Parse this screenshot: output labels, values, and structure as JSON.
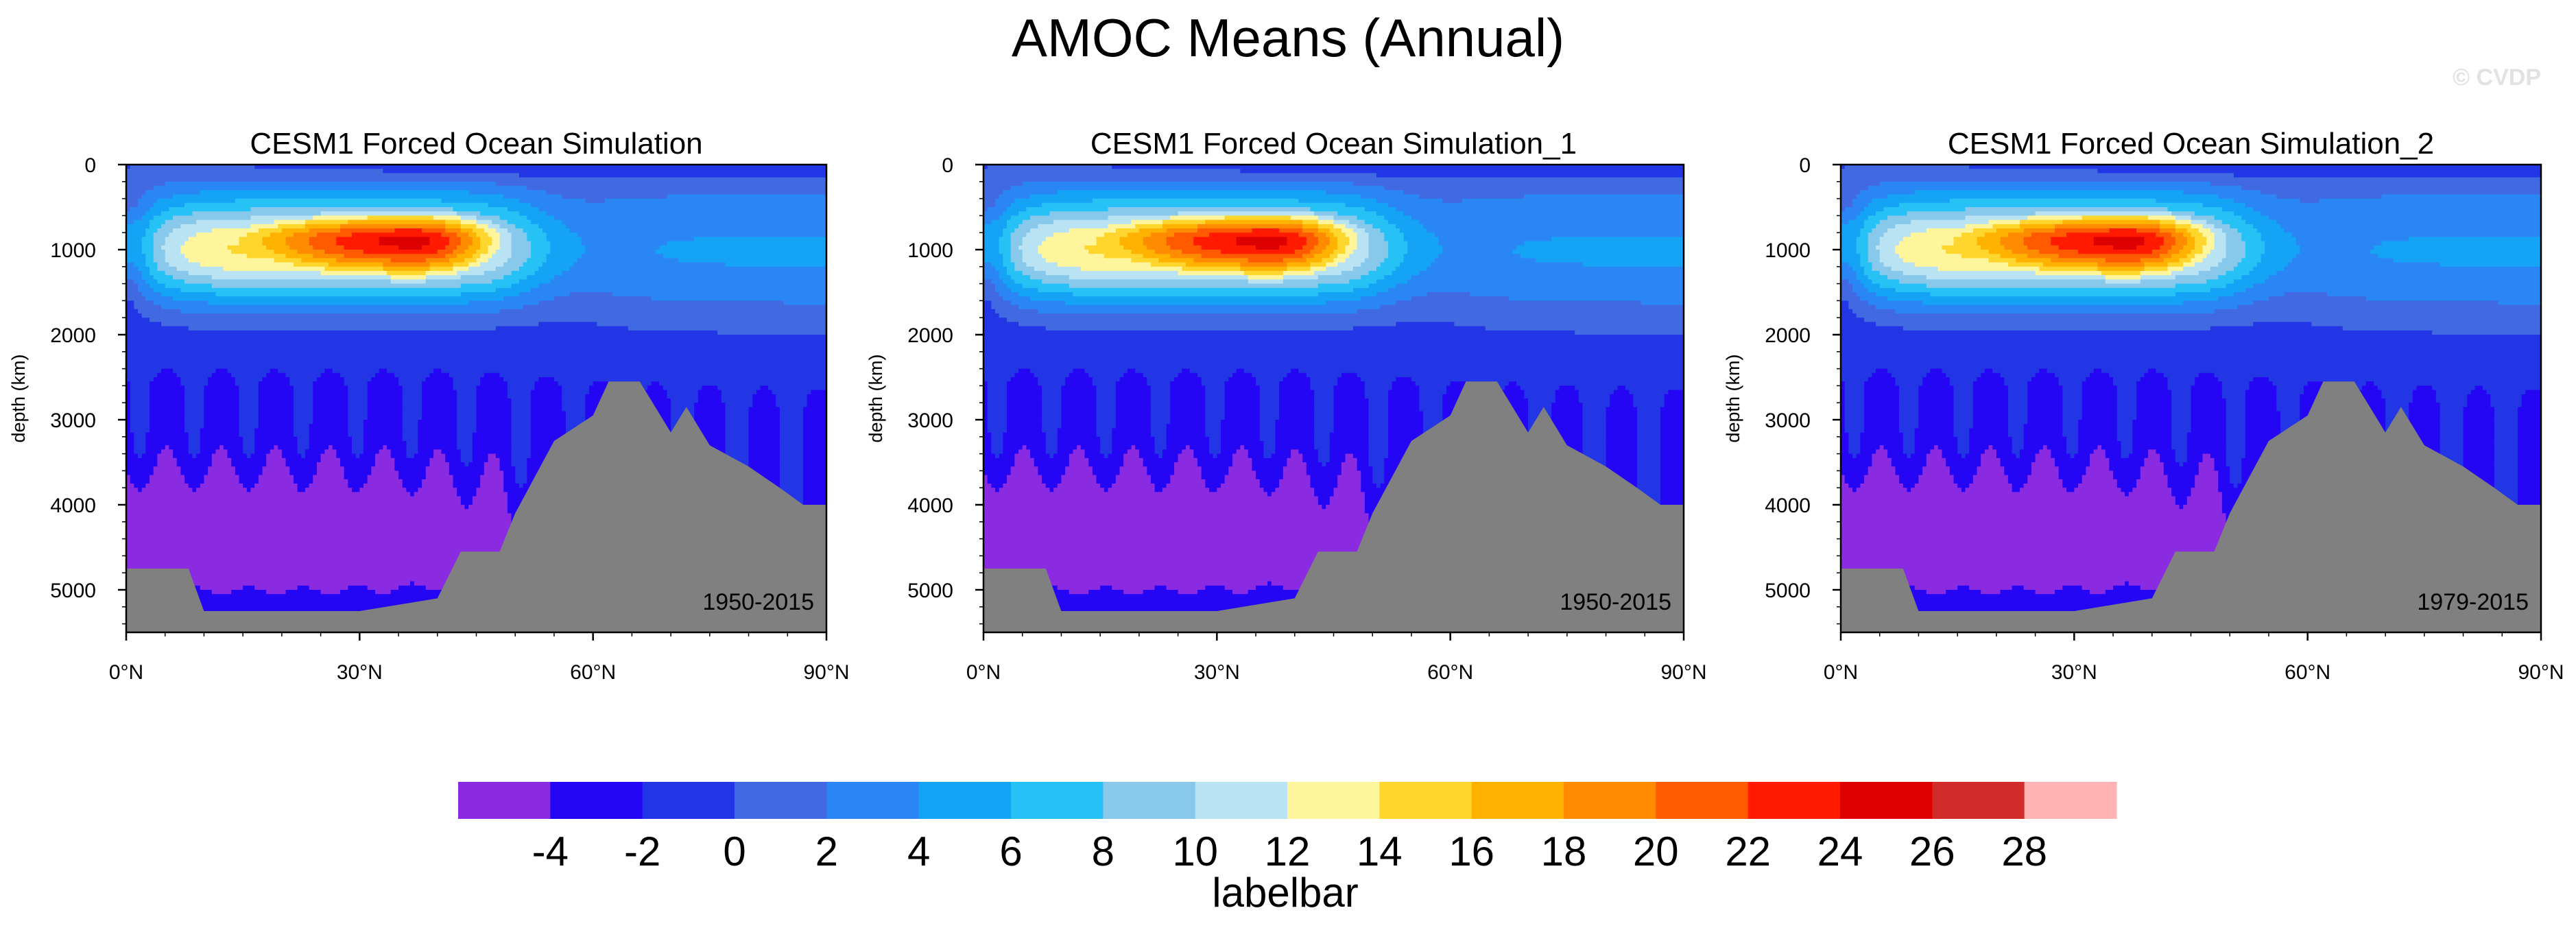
{
  "figure": {
    "title": "AMOC Means (Annual)",
    "copyright": "© CVDP"
  },
  "colors": {
    "land": "#808080",
    "levels": [
      "#8a2be2",
      "#2406f5",
      "#2236e6",
      "#4169e1",
      "#2b86f5",
      "#14a3f5",
      "#27c2f5",
      "#87c8eb",
      "#b9e2f2",
      "#fff59d",
      "#ffd62e",
      "#ffb300",
      "#ff8c00",
      "#ff5a00",
      "#ff1a00",
      "#dd0000",
      "#d22b2b",
      "#ffb3b3"
    ]
  },
  "chart_data": [
    {
      "type": "contour",
      "title": "CESM1 Forced Ocean Simulation",
      "period_label": "1950-2015",
      "ylabel": "depth (km)",
      "xlabel": "",
      "xlim": [
        0,
        90
      ],
      "ylim": [
        5500,
        0
      ],
      "xticks": [
        0,
        30,
        60,
        90
      ],
      "xtick_labels": [
        "0°N",
        "30°N",
        "60°N",
        "90°N"
      ],
      "yticks": [
        0,
        1000,
        2000,
        3000,
        4000,
        5000
      ],
      "ytick_labels": [
        "0",
        "1000",
        "2000",
        "3000",
        "4000",
        "5000"
      ],
      "core": {
        "lat": 37,
        "depth": 900,
        "max": 25
      },
      "bathymetry": [
        [
          0,
          4750
        ],
        [
          8,
          4750
        ],
        [
          9,
          5000
        ],
        [
          10,
          5250
        ],
        [
          30,
          5250
        ],
        [
          40,
          5100
        ],
        [
          43,
          4550
        ],
        [
          48,
          4550
        ],
        [
          50,
          4100
        ],
        [
          55,
          3250
        ],
        [
          60,
          2950
        ],
        [
          62,
          2550
        ],
        [
          66,
          2550
        ],
        [
          68,
          2850
        ],
        [
          70,
          3150
        ],
        [
          72,
          2850
        ],
        [
          75,
          3300
        ],
        [
          80,
          3550
        ],
        [
          84,
          3800
        ],
        [
          87,
          4000
        ],
        [
          90,
          4000
        ]
      ]
    },
    {
      "type": "contour",
      "title": "CESM1 Forced Ocean Simulation_1",
      "period_label": "1950-2015",
      "ylabel": "depth (km)",
      "xlabel": "",
      "xlim": [
        0,
        90
      ],
      "ylim": [
        5500,
        0
      ],
      "xticks": [
        0,
        30,
        60,
        90
      ],
      "xtick_labels": [
        "0°N",
        "30°N",
        "60°N",
        "90°N"
      ],
      "yticks": [
        0,
        1000,
        2000,
        3000,
        4000,
        5000
      ],
      "ytick_labels": [
        "0",
        "1000",
        "2000",
        "3000",
        "4000",
        "5000"
      ],
      "core": {
        "lat": 37,
        "depth": 900,
        "max": 25
      },
      "bathymetry": [
        [
          0,
          4750
        ],
        [
          8,
          4750
        ],
        [
          9,
          5000
        ],
        [
          10,
          5250
        ],
        [
          30,
          5250
        ],
        [
          40,
          5100
        ],
        [
          43,
          4550
        ],
        [
          48,
          4550
        ],
        [
          50,
          4100
        ],
        [
          55,
          3250
        ],
        [
          60,
          2950
        ],
        [
          62,
          2550
        ],
        [
          66,
          2550
        ],
        [
          68,
          2850
        ],
        [
          70,
          3150
        ],
        [
          72,
          2850
        ],
        [
          75,
          3300
        ],
        [
          80,
          3550
        ],
        [
          84,
          3800
        ],
        [
          87,
          4000
        ],
        [
          90,
          4000
        ]
      ]
    },
    {
      "type": "contour",
      "title": "CESM1 Forced Ocean Simulation_2",
      "period_label": "1979-2015",
      "ylabel": "depth (km)",
      "xlabel": "",
      "xlim": [
        0,
        90
      ],
      "ylim": [
        5500,
        0
      ],
      "xticks": [
        0,
        30,
        60,
        90
      ],
      "xtick_labels": [
        "0°N",
        "30°N",
        "60°N",
        "90°N"
      ],
      "yticks": [
        0,
        1000,
        2000,
        3000,
        4000,
        5000
      ],
      "ytick_labels": [
        "0",
        "1000",
        "2000",
        "3000",
        "4000",
        "5000"
      ],
      "core": {
        "lat": 37,
        "depth": 900,
        "max": 25
      },
      "bathymetry": [
        [
          0,
          4750
        ],
        [
          8,
          4750
        ],
        [
          9,
          5000
        ],
        [
          10,
          5250
        ],
        [
          30,
          5250
        ],
        [
          40,
          5100
        ],
        [
          43,
          4550
        ],
        [
          48,
          4550
        ],
        [
          50,
          4100
        ],
        [
          55,
          3250
        ],
        [
          60,
          2950
        ],
        [
          62,
          2550
        ],
        [
          66,
          2550
        ],
        [
          68,
          2850
        ],
        [
          70,
          3150
        ],
        [
          72,
          2850
        ],
        [
          75,
          3300
        ],
        [
          80,
          3550
        ],
        [
          84,
          3800
        ],
        [
          87,
          4000
        ],
        [
          90,
          4000
        ]
      ]
    }
  ],
  "labelbar": {
    "title": "labelbar",
    "labels": [
      "-4",
      "-2",
      "0",
      "2",
      "4",
      "6",
      "8",
      "10",
      "12",
      "14",
      "16",
      "18",
      "20",
      "22",
      "24",
      "26",
      "28"
    ]
  }
}
